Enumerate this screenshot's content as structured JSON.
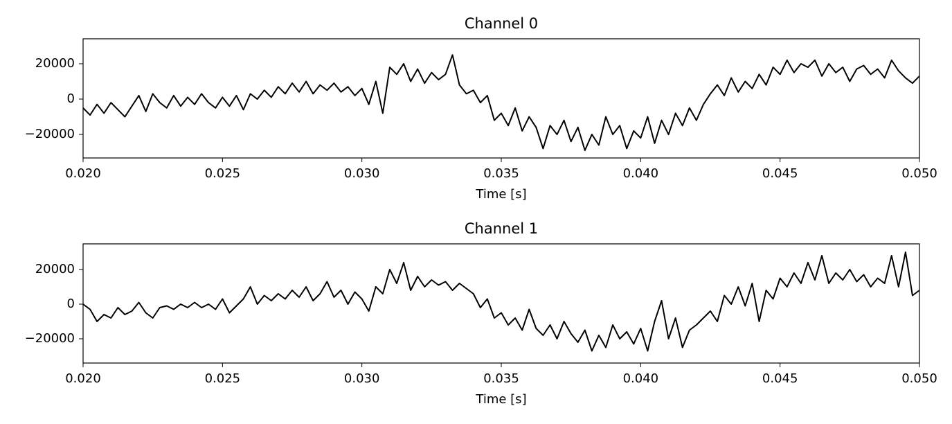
{
  "chart_data": [
    {
      "type": "line",
      "title": "Channel 0",
      "xlabel": "Time [s]",
      "x": [
        0.02,
        0.02025,
        0.0205,
        0.02075,
        0.021,
        0.02125,
        0.0215,
        0.02175,
        0.022,
        0.02225,
        0.0225,
        0.02275,
        0.023,
        0.02325,
        0.0235,
        0.02375,
        0.024,
        0.02425,
        0.0245,
        0.02475,
        0.025,
        0.02525,
        0.0255,
        0.02575,
        0.026,
        0.02625,
        0.0265,
        0.02675,
        0.027,
        0.02725,
        0.0275,
        0.02775,
        0.028,
        0.02825,
        0.0285,
        0.02875,
        0.029,
        0.02925,
        0.0295,
        0.02975,
        0.03,
        0.03025,
        0.0305,
        0.03075,
        0.031,
        0.03125,
        0.0315,
        0.03175,
        0.032,
        0.03225,
        0.0325,
        0.03275,
        0.033,
        0.03325,
        0.0335,
        0.03375,
        0.034,
        0.03425,
        0.0345,
        0.03475,
        0.035,
        0.03525,
        0.0355,
        0.03575,
        0.036,
        0.03625,
        0.0365,
        0.03675,
        0.037,
        0.03725,
        0.0375,
        0.03775,
        0.038,
        0.03825,
        0.0385,
        0.03875,
        0.039,
        0.03925,
        0.0395,
        0.03975,
        0.04,
        0.04025,
        0.0405,
        0.04075,
        0.041,
        0.04125,
        0.0415,
        0.04175,
        0.042,
        0.04225,
        0.0425,
        0.04275,
        0.043,
        0.04325,
        0.0435,
        0.04375,
        0.044,
        0.04425,
        0.0445,
        0.04475,
        0.045,
        0.04525,
        0.0455,
        0.04575,
        0.046,
        0.04625,
        0.0465,
        0.04675,
        0.047,
        0.04725,
        0.0475,
        0.04775,
        0.048,
        0.04825,
        0.0485,
        0.04875,
        0.049,
        0.04925,
        0.0495,
        0.04975,
        0.05
      ],
      "series": [
        {
          "color": "#000000",
          "values": [
            -5000,
            -9000,
            -3000,
            -8000,
            -2000,
            -6000,
            -10000,
            -4000,
            2000,
            -7000,
            3000,
            -2000,
            -5000,
            2000,
            -4000,
            1000,
            -3000,
            3000,
            -2000,
            -5000,
            1000,
            -4000,
            2000,
            -6000,
            3000,
            0,
            5000,
            1000,
            7000,
            3000,
            9000,
            4000,
            10000,
            3000,
            8000,
            5000,
            9000,
            4000,
            7000,
            2000,
            6000,
            -3000,
            10000,
            -8000,
            18000,
            14000,
            20000,
            10000,
            17000,
            9000,
            15000,
            11000,
            14000,
            25000,
            8000,
            3000,
            5000,
            -2000,
            2000,
            -12000,
            -8000,
            -15000,
            -5000,
            -18000,
            -10000,
            -16000,
            -28000,
            -15000,
            -20000,
            -12000,
            -24000,
            -16000,
            -29000,
            -20000,
            -26000,
            -10000,
            -20000,
            -15000,
            -28000,
            -18000,
            -22000,
            -10000,
            -25000,
            -12000,
            -20000,
            -8000,
            -15000,
            -5000,
            -12000,
            -3000,
            3000,
            8000,
            2000,
            12000,
            4000,
            10000,
            6000,
            14000,
            8000,
            18000,
            14000,
            22000,
            15000,
            20000,
            18000,
            22000,
            13000,
            20000,
            15000,
            18000,
            10000,
            17000,
            19000,
            14000,
            17000,
            12000,
            22000,
            16000,
            12000,
            9000,
            13000
          ]
        }
      ],
      "xlim": [
        0.02,
        0.05
      ],
      "xticks": [
        {
          "value": 0.02,
          "label": "0.020"
        },
        {
          "value": 0.025,
          "label": "0.025"
        },
        {
          "value": 0.03,
          "label": "0.030"
        },
        {
          "value": 0.035,
          "label": "0.035"
        },
        {
          "value": 0.04,
          "label": "0.040"
        },
        {
          "value": 0.045,
          "label": "0.045"
        },
        {
          "value": 0.05,
          "label": "0.050"
        }
      ],
      "ylim": [
        -33300,
        34100
      ],
      "yticks": [
        {
          "value": -20000,
          "label": "−20000"
        },
        0,
        20000
      ]
    },
    {
      "type": "line",
      "title": "Channel 1",
      "xlabel": "Time [s]",
      "x": [
        0.02,
        0.02025,
        0.0205,
        0.02075,
        0.021,
        0.02125,
        0.0215,
        0.02175,
        0.022,
        0.02225,
        0.0225,
        0.02275,
        0.023,
        0.02325,
        0.0235,
        0.02375,
        0.024,
        0.02425,
        0.0245,
        0.02475,
        0.025,
        0.02525,
        0.0255,
        0.02575,
        0.026,
        0.02625,
        0.0265,
        0.02675,
        0.027,
        0.02725,
        0.0275,
        0.02775,
        0.028,
        0.02825,
        0.0285,
        0.02875,
        0.029,
        0.02925,
        0.0295,
        0.02975,
        0.03,
        0.03025,
        0.0305,
        0.03075,
        0.031,
        0.03125,
        0.0315,
        0.03175,
        0.032,
        0.03225,
        0.0325,
        0.03275,
        0.033,
        0.03325,
        0.0335,
        0.03375,
        0.034,
        0.03425,
        0.0345,
        0.03475,
        0.035,
        0.03525,
        0.0355,
        0.03575,
        0.036,
        0.03625,
        0.0365,
        0.03675,
        0.037,
        0.03725,
        0.0375,
        0.03775,
        0.038,
        0.03825,
        0.0385,
        0.03875,
        0.039,
        0.03925,
        0.0395,
        0.03975,
        0.04,
        0.04025,
        0.0405,
        0.04075,
        0.041,
        0.04125,
        0.0415,
        0.04175,
        0.042,
        0.04225,
        0.0425,
        0.04275,
        0.043,
        0.04325,
        0.0435,
        0.04375,
        0.044,
        0.04425,
        0.0445,
        0.04475,
        0.045,
        0.04525,
        0.0455,
        0.04575,
        0.046,
        0.04625,
        0.0465,
        0.04675,
        0.047,
        0.04725,
        0.0475,
        0.04775,
        0.048,
        0.04825,
        0.0485,
        0.04875,
        0.049,
        0.04925,
        0.0495,
        0.04975,
        0.05
      ],
      "series": [
        {
          "color": "#000000",
          "values": [
            0,
            -3000,
            -10000,
            -6000,
            -8000,
            -2000,
            -6000,
            -4000,
            1000,
            -5000,
            -8000,
            -2000,
            -1000,
            -3000,
            0,
            -2000,
            1000,
            -2000,
            0,
            -3000,
            3000,
            -5000,
            -1000,
            3000,
            10000,
            0,
            5000,
            2000,
            6000,
            3000,
            8000,
            4000,
            10000,
            2000,
            6000,
            13000,
            4000,
            8000,
            0,
            7000,
            3000,
            -4000,
            10000,
            6000,
            20000,
            12000,
            24000,
            8000,
            16000,
            10000,
            14000,
            11000,
            13000,
            8000,
            12000,
            9000,
            6000,
            -2000,
            3000,
            -8000,
            -5000,
            -12000,
            -8000,
            -15000,
            -3000,
            -14000,
            -18000,
            -12000,
            -20000,
            -10000,
            -17000,
            -22000,
            -15000,
            -27000,
            -18000,
            -25000,
            -12000,
            -20000,
            -16000,
            -23000,
            -14000,
            -27000,
            -10000,
            2000,
            -20000,
            -8000,
            -25000,
            -15000,
            -12000,
            -8000,
            -4000,
            -10000,
            5000,
            0,
            10000,
            -1000,
            12000,
            -10000,
            8000,
            3000,
            15000,
            10000,
            18000,
            12000,
            24000,
            14000,
            28000,
            12000,
            18000,
            14000,
            20000,
            13000,
            17000,
            10000,
            15000,
            12000,
            28000,
            10000,
            30000,
            5000,
            8000
          ]
        }
      ],
      "xlim": [
        0.02,
        0.05
      ],
      "xticks": [
        {
          "value": 0.02,
          "label": "0.020"
        },
        {
          "value": 0.025,
          "label": "0.025"
        },
        {
          "value": 0.03,
          "label": "0.030"
        },
        {
          "value": 0.035,
          "label": "0.035"
        },
        {
          "value": 0.04,
          "label": "0.040"
        },
        {
          "value": 0.045,
          "label": "0.045"
        },
        {
          "value": 0.05,
          "label": "0.050"
        }
      ],
      "ylim": [
        -34000,
        34800
      ],
      "yticks": [
        {
          "value": -20000,
          "label": "−20000"
        },
        0,
        20000
      ]
    }
  ]
}
